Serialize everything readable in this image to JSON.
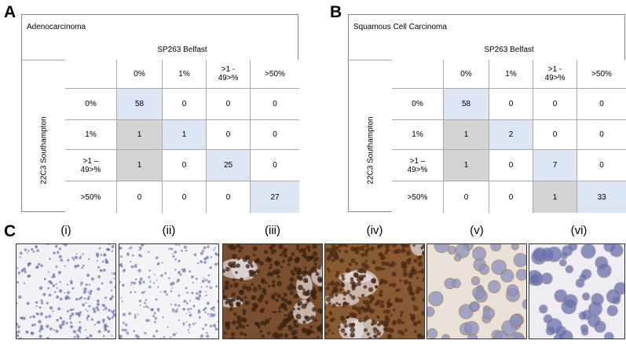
{
  "panel_labels": [
    "A",
    "B",
    "C"
  ],
  "tables": [
    {
      "title": "Adenocarcinoma",
      "column_group": "SP263 Belfast",
      "row_group": "22C3 Southampton",
      "columns": [
        "0%",
        "1%",
        ">1 -\n49>%",
        ">50%"
      ],
      "rows": [
        {
          "label": "0%",
          "cells": [
            58,
            0,
            0,
            0
          ],
          "colors": [
            "#dce6f5",
            "#ffffff",
            "#ffffff",
            "#ffffff"
          ]
        },
        {
          "label": "1%",
          "cells": [
            1,
            1,
            0,
            0
          ],
          "colors": [
            "#d4d4d4",
            "#dce6f5",
            "#ffffff",
            "#ffffff"
          ]
        },
        {
          "label": ">1 –\n49>%",
          "cells": [
            1,
            0,
            25,
            0
          ],
          "colors": [
            "#d4d4d4",
            "#ffffff",
            "#dce6f5",
            "#ffffff"
          ]
        },
        {
          "label": ">50%",
          "cells": [
            0,
            0,
            0,
            27
          ],
          "colors": [
            "#ffffff",
            "#ffffff",
            "#ffffff",
            "#dce6f5"
          ]
        }
      ]
    },
    {
      "title": "Squamous Cell Carcinoma",
      "column_group": "SP263 Belfast",
      "row_group": "22C3 Southampton",
      "columns": [
        "0%",
        "1%",
        ">1 -\n49>%",
        ">50%"
      ],
      "rows": [
        {
          "label": "0%",
          "cells": [
            58,
            0,
            0,
            0
          ],
          "colors": [
            "#dce6f5",
            "#ffffff",
            "#ffffff",
            "#ffffff"
          ]
        },
        {
          "label": "1%",
          "cells": [
            1,
            2,
            0,
            0
          ],
          "colors": [
            "#d4d4d4",
            "#dce6f5",
            "#ffffff",
            "#ffffff"
          ]
        },
        {
          "label": ">1 –\n49>%",
          "cells": [
            1,
            0,
            7,
            0
          ],
          "colors": [
            "#d4d4d4",
            "#ffffff",
            "#dce6f5",
            "#ffffff"
          ]
        },
        {
          "label": ">50%",
          "cells": [
            0,
            0,
            1,
            33
          ],
          "colors": [
            "#ffffff",
            "#ffffff",
            "#d4d4d4",
            "#dce6f5"
          ]
        }
      ]
    }
  ],
  "images": {
    "labels": [
      "(i)",
      "(ii)",
      "(iii)",
      "(iv)",
      "(v)",
      "(vi)"
    ]
  }
}
